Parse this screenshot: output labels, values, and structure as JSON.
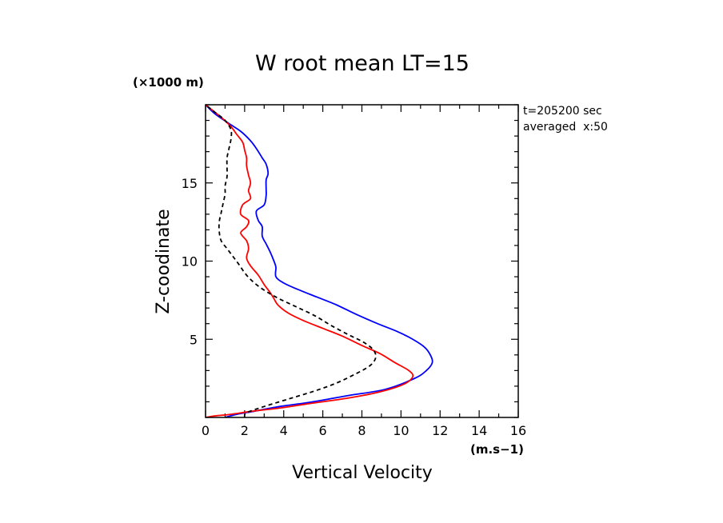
{
  "chart_data": {
    "type": "line",
    "title": "W root mean LT=15",
    "xlabel": "Vertical Velocity",
    "ylabel": "Z-coodinate",
    "x_unit": "(m.s−1)",
    "y_unit": "(×1000 m)",
    "annotation_lines": [
      "t=205200 sec",
      "averaged  x:50"
    ],
    "xlim": [
      0,
      16
    ],
    "ylim": [
      0,
      20
    ],
    "x_ticks": [
      0,
      2,
      4,
      6,
      8,
      10,
      12,
      14,
      16
    ],
    "x_tick_labels": [
      "0",
      "2",
      "4",
      "6",
      "8",
      "10",
      "12",
      "14",
      "16"
    ],
    "y_ticks": [
      5,
      10,
      15
    ],
    "y_tick_labels": [
      "5",
      "10",
      "15"
    ],
    "x_minor_step": 1,
    "y_minor_step": 1,
    "grid": false,
    "series": [
      {
        "color": "#0000ff",
        "dash": "solid",
        "points": [
          [
            1.0,
            0.0
          ],
          [
            1.6,
            0.2
          ],
          [
            2.5,
            0.4
          ],
          [
            3.8,
            0.7
          ],
          [
            5.5,
            1.0
          ],
          [
            7.3,
            1.4
          ],
          [
            9.2,
            1.8
          ],
          [
            10.7,
            2.5
          ],
          [
            11.3,
            3.0
          ],
          [
            11.6,
            3.5
          ],
          [
            11.5,
            4.0
          ],
          [
            11.2,
            4.5
          ],
          [
            10.6,
            5.0
          ],
          [
            9.8,
            5.5
          ],
          [
            8.8,
            6.0
          ],
          [
            7.7,
            6.6
          ],
          [
            6.7,
            7.2
          ],
          [
            5.7,
            7.7
          ],
          [
            4.7,
            8.2
          ],
          [
            4.0,
            8.6
          ],
          [
            3.6,
            9.0
          ],
          [
            3.6,
            9.6
          ],
          [
            3.5,
            10.0
          ],
          [
            3.3,
            10.6
          ],
          [
            3.1,
            11.1
          ],
          [
            2.9,
            11.6
          ],
          [
            2.9,
            12.2
          ],
          [
            2.7,
            12.6
          ],
          [
            2.6,
            13.2
          ],
          [
            3.0,
            13.6
          ],
          [
            3.1,
            14.2
          ],
          [
            3.1,
            14.6
          ],
          [
            3.1,
            15.2
          ],
          [
            3.2,
            15.6
          ],
          [
            3.1,
            16.2
          ],
          [
            2.9,
            16.6
          ],
          [
            2.6,
            17.2
          ],
          [
            2.3,
            17.7
          ],
          [
            1.8,
            18.3
          ],
          [
            1.2,
            18.8
          ],
          [
            0.5,
            19.4
          ],
          [
            0.0,
            20.0
          ]
        ]
      },
      {
        "color": "#ff0000",
        "dash": "solid",
        "points": [
          [
            0.0,
            0.0
          ],
          [
            0.5,
            0.1
          ],
          [
            1.3,
            0.2
          ],
          [
            2.4,
            0.4
          ],
          [
            3.8,
            0.6
          ],
          [
            5.4,
            0.9
          ],
          [
            7.1,
            1.2
          ],
          [
            8.8,
            1.6
          ],
          [
            10.1,
            2.1
          ],
          [
            10.6,
            2.6
          ],
          [
            10.4,
            3.0
          ],
          [
            9.7,
            3.5
          ],
          [
            8.9,
            4.1
          ],
          [
            8.0,
            4.6
          ],
          [
            7.0,
            5.2
          ],
          [
            6.0,
            5.7
          ],
          [
            5.0,
            6.2
          ],
          [
            4.2,
            6.7
          ],
          [
            3.7,
            7.2
          ],
          [
            3.5,
            7.6
          ],
          [
            3.3,
            8.0
          ],
          [
            3.0,
            8.5
          ],
          [
            2.7,
            9.1
          ],
          [
            2.3,
            9.7
          ],
          [
            2.1,
            10.2
          ],
          [
            2.2,
            10.8
          ],
          [
            2.1,
            11.3
          ],
          [
            1.8,
            11.8
          ],
          [
            2.1,
            12.2
          ],
          [
            2.2,
            12.6
          ],
          [
            1.8,
            13.0
          ],
          [
            1.9,
            13.6
          ],
          [
            2.3,
            14.0
          ],
          [
            2.2,
            14.5
          ],
          [
            2.3,
            15.0
          ],
          [
            2.2,
            15.5
          ],
          [
            2.1,
            16.1
          ],
          [
            2.1,
            16.6
          ],
          [
            2.0,
            17.1
          ],
          [
            1.9,
            17.6
          ],
          [
            1.6,
            18.1
          ],
          [
            1.3,
            18.6
          ],
          [
            0.8,
            19.2
          ],
          [
            0.0,
            20.0
          ]
        ]
      },
      {
        "color": "#000000",
        "dash": "dashed",
        "points": [
          [
            2.0,
            0.0
          ],
          [
            2.1,
            0.3
          ],
          [
            3.0,
            0.7
          ],
          [
            4.3,
            1.2
          ],
          [
            5.6,
            1.7
          ],
          [
            6.7,
            2.2
          ],
          [
            7.7,
            2.8
          ],
          [
            8.4,
            3.3
          ],
          [
            8.7,
            3.8
          ],
          [
            8.6,
            4.3
          ],
          [
            8.1,
            4.8
          ],
          [
            7.3,
            5.3
          ],
          [
            6.4,
            5.9
          ],
          [
            5.6,
            6.5
          ],
          [
            4.6,
            7.1
          ],
          [
            3.6,
            7.7
          ],
          [
            2.7,
            8.4
          ],
          [
            2.1,
            9.1
          ],
          [
            1.7,
            9.8
          ],
          [
            1.4,
            10.3
          ],
          [
            1.1,
            10.8
          ],
          [
            0.8,
            11.3
          ],
          [
            0.7,
            11.9
          ],
          [
            0.7,
            12.5
          ],
          [
            0.8,
            13.1
          ],
          [
            0.9,
            13.7
          ],
          [
            1.0,
            14.3
          ],
          [
            1.0,
            14.8
          ],
          [
            1.1,
            15.4
          ],
          [
            1.1,
            16.0
          ],
          [
            1.1,
            16.6
          ],
          [
            1.2,
            17.2
          ],
          [
            1.3,
            17.8
          ],
          [
            1.3,
            18.4
          ],
          [
            1.0,
            19.0
          ],
          [
            0.5,
            19.5
          ],
          [
            0.0,
            20.0
          ]
        ]
      }
    ]
  }
}
